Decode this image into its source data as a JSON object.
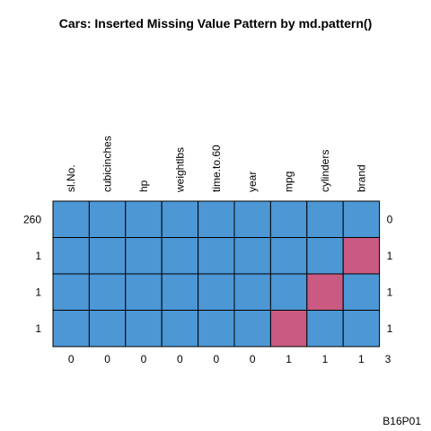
{
  "chart_data": {
    "type": "heatmap",
    "title": "Cars: Inserted Missing Value Pattern by md.pattern()",
    "columns": [
      "sl.No.",
      "cubicinches",
      "hp",
      "weightlbs",
      "time.to.60",
      "year",
      "mpg",
      "cylinders",
      "brand"
    ],
    "row_counts": [
      "260",
      "1",
      "1",
      "1"
    ],
    "row_missing_counts": [
      "0",
      "1",
      "1",
      "1"
    ],
    "column_missing_counts": [
      "0",
      "0",
      "0",
      "0",
      "0",
      "0",
      "1",
      "1",
      "1"
    ],
    "total_missing": "3",
    "pattern": [
      [
        1,
        1,
        1,
        1,
        1,
        1,
        1,
        1,
        1
      ],
      [
        1,
        1,
        1,
        1,
        1,
        1,
        1,
        1,
        0
      ],
      [
        1,
        1,
        1,
        1,
        1,
        1,
        1,
        0,
        1
      ],
      [
        1,
        1,
        1,
        1,
        1,
        1,
        0,
        1,
        1
      ]
    ],
    "legend": "none",
    "grid": true,
    "colors": {
      "observed": "#4d97d5",
      "missing": "#c95b82",
      "grid": "#000000"
    }
  },
  "footer_label": "B16P01"
}
